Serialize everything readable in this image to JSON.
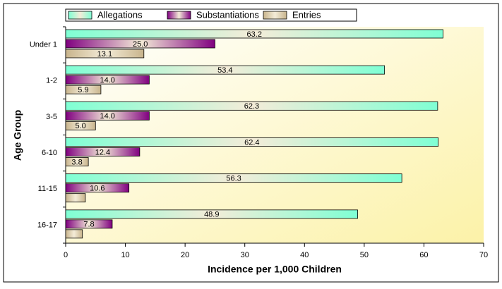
{
  "chart_data": {
    "type": "bar",
    "orientation": "horizontal",
    "categories": [
      "Under 1",
      "1-2",
      "3-5",
      "6-10",
      "11-15",
      "16-17"
    ],
    "series": [
      {
        "name": "Allegations",
        "color": "#7fffd4",
        "values": [
          63.2,
          53.4,
          62.3,
          62.4,
          56.3,
          48.9
        ],
        "value_labels": [
          "63.2",
          "53.4",
          "62.3",
          "62.4",
          "56.3",
          "48.9"
        ]
      },
      {
        "name": "Substantiations",
        "color": "#800080",
        "values": [
          25.0,
          14.0,
          14.0,
          12.4,
          10.6,
          7.8
        ],
        "value_labels": [
          "25.0",
          "14.0",
          "14.0",
          "12.4",
          "10.6",
          "7.8"
        ]
      },
      {
        "name": "Entries",
        "color": "#c8b48c",
        "values": [
          13.1,
          5.9,
          5.0,
          3.8,
          3.3,
          2.8
        ],
        "value_labels": [
          "13.1",
          "5.9",
          "5.0",
          "3.8",
          null,
          null
        ]
      }
    ],
    "x_label": "Incidence per 1,000 Children",
    "y_label": "Age Group",
    "xlim": [
      0,
      70
    ],
    "xticks": [
      0,
      10,
      20,
      30,
      40,
      50,
      60,
      70
    ],
    "legend": "top"
  }
}
